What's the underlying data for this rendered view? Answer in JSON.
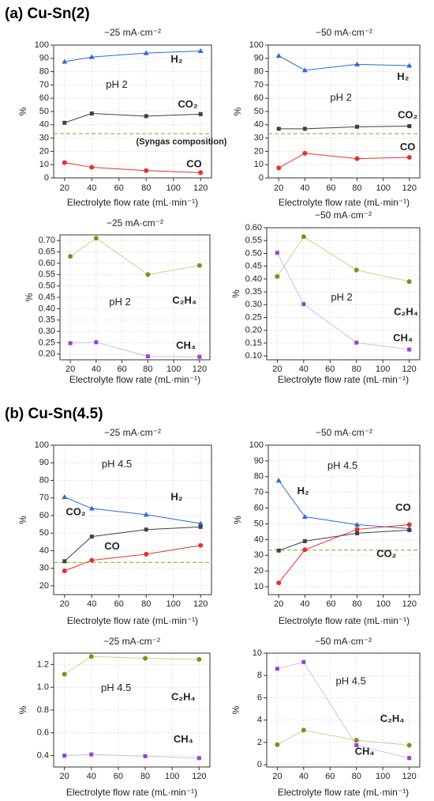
{
  "panel_labels": [
    "(a) Cu-Sn(2)",
    "(b) Cu-Sn(4.5)"
  ],
  "chart_data": [
    {
      "type": "line",
      "title": "−25 mA·cm⁻²",
      "x_label": "Electrolyte flow rate (mL·min⁻¹)",
      "y_label": "%",
      "grid": true,
      "x": [
        20,
        40,
        80,
        120
      ],
      "xlim": [
        12,
        128
      ],
      "xticks": [
        20,
        40,
        60,
        80,
        100,
        120
      ],
      "ylim": [
        0,
        100
      ],
      "yticks": [
        0,
        10,
        20,
        30,
        40,
        50,
        60,
        70,
        80,
        90,
        100
      ],
      "reference_line": {
        "value": 33.3,
        "color": "#8db33a",
        "label": "(Syngas composition)"
      },
      "annotations": [
        "pH 2"
      ],
      "series": [
        {
          "name": "H₂",
          "color": "#2b6bd6",
          "marker": "triangle",
          "values": [
            87.5,
            91,
            94,
            95.5
          ]
        },
        {
          "name": "CO₂",
          "color": "#404040",
          "marker": "square",
          "values": [
            41.5,
            48.5,
            46.5,
            48
          ]
        },
        {
          "name": "CO",
          "color": "#e8302c",
          "marker": "circle",
          "values": [
            11.5,
            8,
            5.5,
            4
          ]
        }
      ]
    },
    {
      "type": "line",
      "title": "−50 mA·cm⁻²",
      "x_label": "Electrolyte flow rate (mL·min⁻¹)",
      "y_label": "%",
      "grid": true,
      "x": [
        20,
        40,
        80,
        120
      ],
      "xlim": [
        12,
        128
      ],
      "xticks": [
        20,
        40,
        60,
        80,
        100,
        120
      ],
      "ylim": [
        0,
        100
      ],
      "yticks": [
        0,
        10,
        20,
        30,
        40,
        50,
        60,
        70,
        80,
        90,
        100
      ],
      "reference_line": {
        "value": 33.3,
        "color": "#8db33a"
      },
      "annotations": [
        "pH 2"
      ],
      "series": [
        {
          "name": "H₂",
          "color": "#2b6bd6",
          "marker": "triangle",
          "values": [
            92,
            81,
            85.5,
            84.5
          ]
        },
        {
          "name": "CO₂",
          "color": "#404040",
          "marker": "square",
          "values": [
            37,
            37,
            38.5,
            39
          ]
        },
        {
          "name": "CO",
          "color": "#e8302c",
          "marker": "circle",
          "values": [
            7.5,
            18.5,
            14.5,
            15.5
          ]
        }
      ]
    },
    {
      "type": "line",
      "title": "−25 mA·cm⁻²",
      "x_label": "Electrolyte flow rate (mL·min⁻¹)",
      "y_label": "%",
      "grid": true,
      "x": [
        20,
        40,
        80,
        120
      ],
      "xlim": [
        12,
        128
      ],
      "xticks": [
        20,
        40,
        60,
        80,
        100,
        120
      ],
      "ylim": [
        0.175,
        0.725
      ],
      "yticks": [
        {
          "value": 0.2,
          "label": "0.20"
        },
        0.25,
        {
          "value": 0.3,
          "label": "0.30"
        },
        0.35,
        {
          "value": 0.4,
          "label": "0.40"
        },
        0.45,
        {
          "value": 0.5,
          "label": "0.50"
        },
        0.55,
        {
          "value": 0.6,
          "label": "0.60"
        },
        0.65,
        {
          "value": 0.7,
          "label": "0.70"
        }
      ],
      "annotations": [
        "pH 2"
      ],
      "series": [
        {
          "name": "C₂H₄",
          "color": "#8a8a1a",
          "line_color": "#cfcf94",
          "marker": "circle",
          "values": [
            0.63,
            0.71,
            0.55,
            0.59
          ]
        },
        {
          "name": "CH₄",
          "color": "#9c3fe0",
          "line_color": "#cdc0e0",
          "marker": "square",
          "values": [
            0.248,
            0.252,
            0.19,
            0.188
          ]
        }
      ]
    },
    {
      "type": "line",
      "title": "−50 mA·cm⁻²",
      "x_label": "Electrolyte flow rate (mL·min⁻¹)",
      "y_label": "%",
      "grid": true,
      "x": [
        20,
        40,
        80,
        120
      ],
      "xlim": [
        12,
        128
      ],
      "xticks": [
        20,
        40,
        60,
        80,
        100,
        120
      ],
      "ylim": [
        0.085,
        0.6
      ],
      "yticks": [
        {
          "value": 0.1,
          "label": "0.10"
        },
        0.15,
        {
          "value": 0.2,
          "label": "0.20"
        },
        0.25,
        {
          "value": 0.3,
          "label": "0.30"
        },
        0.35,
        {
          "value": 0.4,
          "label": "0.40"
        },
        0.45,
        {
          "value": 0.5,
          "label": "0.50"
        },
        0.55,
        {
          "value": 0.6,
          "label": "0.60"
        }
      ],
      "annotations": [
        "pH 2"
      ],
      "series": [
        {
          "name": "C₂H₄",
          "color": "#8a8a1a",
          "line_color": "#cfcf94",
          "marker": "circle",
          "values": [
            0.41,
            0.565,
            0.435,
            0.39
          ]
        },
        {
          "name": "CH₄",
          "color": "#9c3fe0",
          "line_color": "#cdc0e0",
          "marker": "square",
          "values": [
            0.502,
            0.302,
            0.152,
            0.125
          ]
        }
      ]
    },
    {
      "type": "line",
      "title": "−25 mA·cm⁻²",
      "x_label": "Electrolyte flow rate (mL·min⁻¹)",
      "y_label": "%",
      "grid": true,
      "x": [
        20,
        40,
        80,
        120
      ],
      "xlim": [
        12,
        128
      ],
      "xticks": [
        20,
        40,
        60,
        80,
        100,
        120
      ],
      "ylim": [
        15,
        100
      ],
      "yticks": [
        20,
        30,
        40,
        50,
        60,
        70,
        80,
        90,
        100
      ],
      "reference_line": {
        "value": 33.3,
        "color": "#8db33a"
      },
      "annotations": [
        "pH 4.5"
      ],
      "series": [
        {
          "name": "H₂",
          "color": "#2b6bd6",
          "marker": "triangle",
          "values": [
            70.5,
            64,
            60.5,
            55.5
          ]
        },
        {
          "name": "CO₂",
          "color": "#404040",
          "marker": "square",
          "values": [
            34,
            48,
            52,
            53.5
          ]
        },
        {
          "name": "CO",
          "color": "#e8302c",
          "marker": "circle",
          "values": [
            28.5,
            34.5,
            38,
            43
          ]
        }
      ]
    },
    {
      "type": "line",
      "title": "−50 mA·cm⁻²",
      "x_label": "Electrolyte flow rate (mL·min⁻¹)",
      "y_label": "%",
      "grid": true,
      "x": [
        20,
        40,
        80,
        120
      ],
      "xlim": [
        12,
        128
      ],
      "xticks": [
        20,
        40,
        60,
        80,
        100,
        120
      ],
      "ylim": [
        5,
        100
      ],
      "yticks": [
        10,
        20,
        30,
        40,
        50,
        60,
        70,
        80,
        90,
        100
      ],
      "reference_line": {
        "value": 33.3,
        "color": "#8db33a"
      },
      "annotations": [
        "pH 4.5"
      ],
      "series": [
        {
          "name": "H₂",
          "color": "#2b6bd6",
          "marker": "triangle",
          "values": [
            77.5,
            54.5,
            49.5,
            47
          ]
        },
        {
          "name": "CO",
          "color": "#e8302c",
          "marker": "circle",
          "values": [
            12.5,
            33.5,
            46.5,
            49.5
          ]
        },
        {
          "name": "CO₂",
          "color": "#404040",
          "marker": "square",
          "values": [
            33,
            39,
            44,
            46
          ]
        }
      ]
    },
    {
      "type": "line",
      "title": "−25 mA·cm⁻²",
      "x_label": "Electrolyte flow rate (mL·min⁻¹)",
      "y_label": "%",
      "grid": true,
      "x": [
        20,
        40,
        80,
        120
      ],
      "xlim": [
        12,
        128
      ],
      "xticks": [
        20,
        40,
        60,
        80,
        100,
        120
      ],
      "ylim": [
        0.3,
        1.3
      ],
      "yticks": [
        0.4,
        0.6,
        0.8,
        {
          "value": 1.0,
          "label": "1.0"
        },
        1.2
      ],
      "annotations": [
        "pH 4.5"
      ],
      "series": [
        {
          "name": "C₂H₄",
          "color": "#8a8a1a",
          "line_color": "#cfcf94",
          "marker": "circle",
          "values": [
            1.115,
            1.27,
            1.255,
            1.245
          ]
        },
        {
          "name": "CH₄",
          "color": "#9c3fe0",
          "line_color": "#cdc0e0",
          "marker": "square",
          "values": [
            0.4,
            0.41,
            0.395,
            0.378
          ]
        }
      ]
    },
    {
      "type": "line",
      "title": "−50 mA·cm⁻²",
      "x_label": "Electrolyte flow rate (mL·min⁻¹)",
      "y_label": "%",
      "grid": true,
      "x": [
        20,
        40,
        80,
        120
      ],
      "xlim": [
        12,
        128
      ],
      "xticks": [
        20,
        40,
        60,
        80,
        100,
        120
      ],
      "ylim": [
        -0.2,
        10
      ],
      "yticks": [
        0,
        2,
        4,
        6,
        8,
        10
      ],
      "annotations": [
        "pH 4.5"
      ],
      "series": [
        {
          "name": "C₂H₄",
          "color": "#8a8a1a",
          "line_color": "#cfcf94",
          "marker": "circle",
          "values": [
            1.8,
            3.1,
            2.2,
            1.75
          ]
        },
        {
          "name": "CH₄",
          "color": "#9c3fe0",
          "line_color": "#cdc0e0",
          "marker": "square",
          "values": [
            8.6,
            9.2,
            1.75,
            0.6
          ]
        }
      ]
    }
  ]
}
